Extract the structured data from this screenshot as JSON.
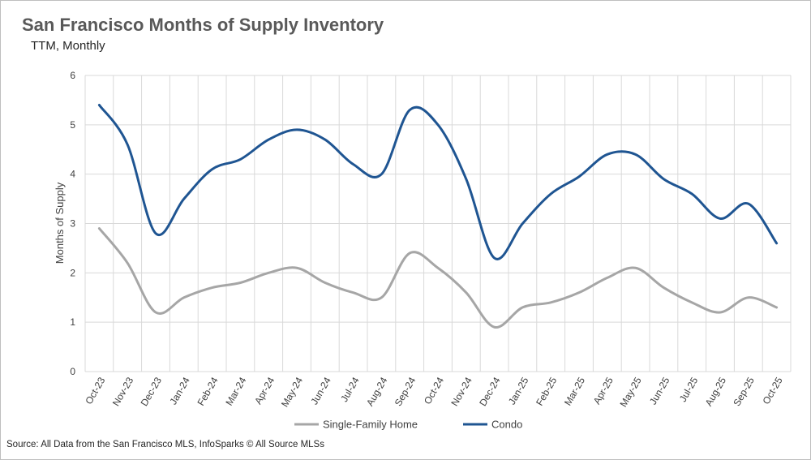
{
  "header": {
    "title": "San Francisco Months of Supply Inventory",
    "subtitle": "TTM, Monthly"
  },
  "footer": {
    "source": "Source: All Data from the San Francisco MLS, InfoSparks © All Source MLSs"
  },
  "colors": {
    "single_family": "#a6a6a6",
    "condo": "#1f5592",
    "grid": "#d9d9d9"
  },
  "chart_data": {
    "type": "line",
    "title": "San Francisco Months of Supply Inventory",
    "subtitle": "TTM, Monthly",
    "xlabel": "",
    "ylabel": "Months of Supply",
    "ylim": [
      0,
      6
    ],
    "yticks": [
      0,
      1,
      2,
      3,
      4,
      5,
      6
    ],
    "grid": true,
    "smooth": true,
    "legend_position": "bottom",
    "categories": [
      "Oct-23",
      "Nov-23",
      "Dec-23",
      "Jan-24",
      "Feb-24",
      "Mar-24",
      "Apr-24",
      "May-24",
      "Jun-24",
      "Jul-24",
      "Aug-24",
      "Sep-24",
      "Oct-24",
      "Nov-24",
      "Dec-24",
      "Jan-25",
      "Feb-25",
      "Mar-25",
      "Apr-25",
      "May-25",
      "Jun-25",
      "Jul-25",
      "Aug-25",
      "Sep-25",
      "Oct-25"
    ],
    "series": [
      {
        "name": "Single-Family Home",
        "color": "#a6a6a6",
        "values": [
          2.9,
          2.2,
          1.2,
          1.5,
          1.7,
          1.8,
          2.0,
          2.1,
          1.8,
          1.6,
          1.5,
          2.4,
          2.1,
          1.6,
          0.9,
          1.3,
          1.4,
          1.6,
          1.9,
          2.1,
          1.7,
          1.4,
          1.2,
          1.5,
          1.3
        ]
      },
      {
        "name": "Condo",
        "color": "#1f5592",
        "values": [
          5.4,
          4.6,
          2.8,
          3.5,
          4.1,
          4.3,
          4.7,
          4.9,
          4.7,
          4.2,
          4.0,
          5.3,
          5.0,
          3.9,
          2.3,
          3.0,
          3.6,
          3.95,
          4.4,
          4.4,
          3.9,
          3.6,
          3.1,
          3.4,
          2.6
        ]
      }
    ]
  }
}
